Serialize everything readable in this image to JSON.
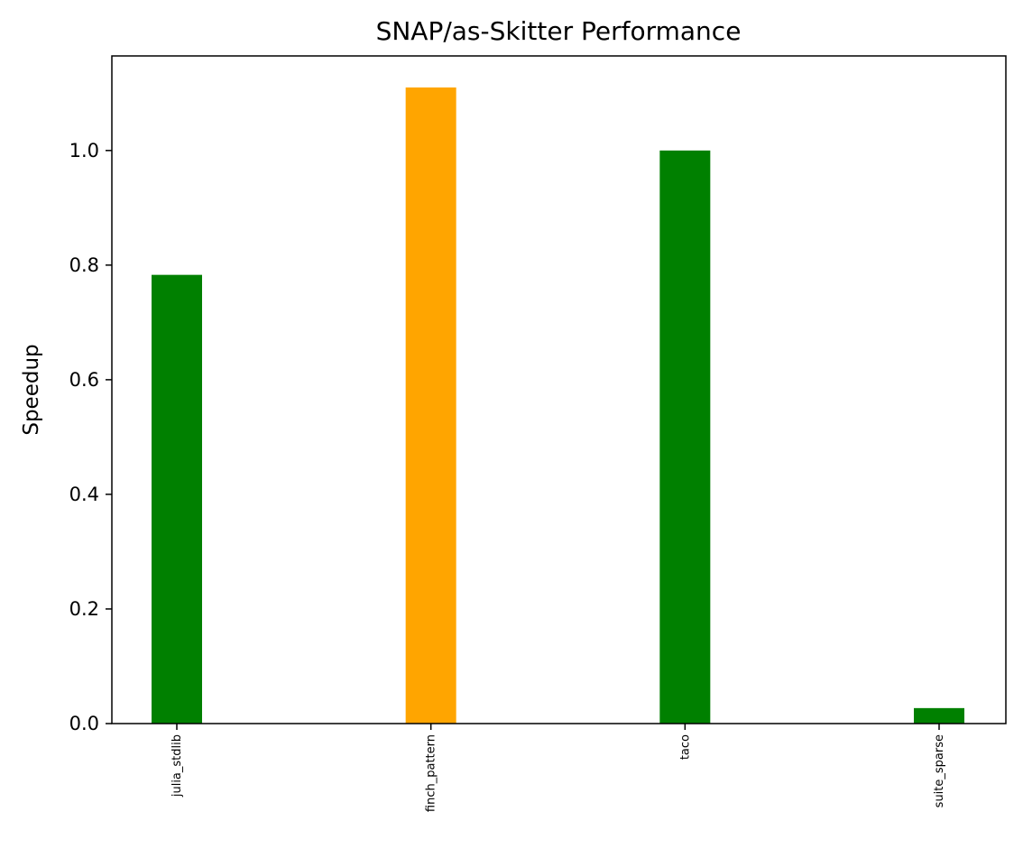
{
  "chart_data": {
    "type": "bar",
    "title": "SNAP/as-Skitter Performance",
    "xlabel": "",
    "ylabel": "Speedup",
    "categories": [
      "julia_stdlib",
      "finch_pattern",
      "taco",
      "suite_sparse"
    ],
    "values": [
      0.783,
      1.11,
      1.0,
      0.027
    ],
    "bar_colors": [
      "#008000",
      "#ffa500",
      "#008000",
      "#008000"
    ],
    "ylim": [
      0,
      1.165
    ],
    "yticks": [
      0.0,
      0.2,
      0.4,
      0.6,
      0.8,
      1.0
    ],
    "ytick_labels": [
      "0.0",
      "0.2",
      "0.4",
      "0.6",
      "0.8",
      "1.0"
    ],
    "grid": false,
    "legend": "none"
  }
}
